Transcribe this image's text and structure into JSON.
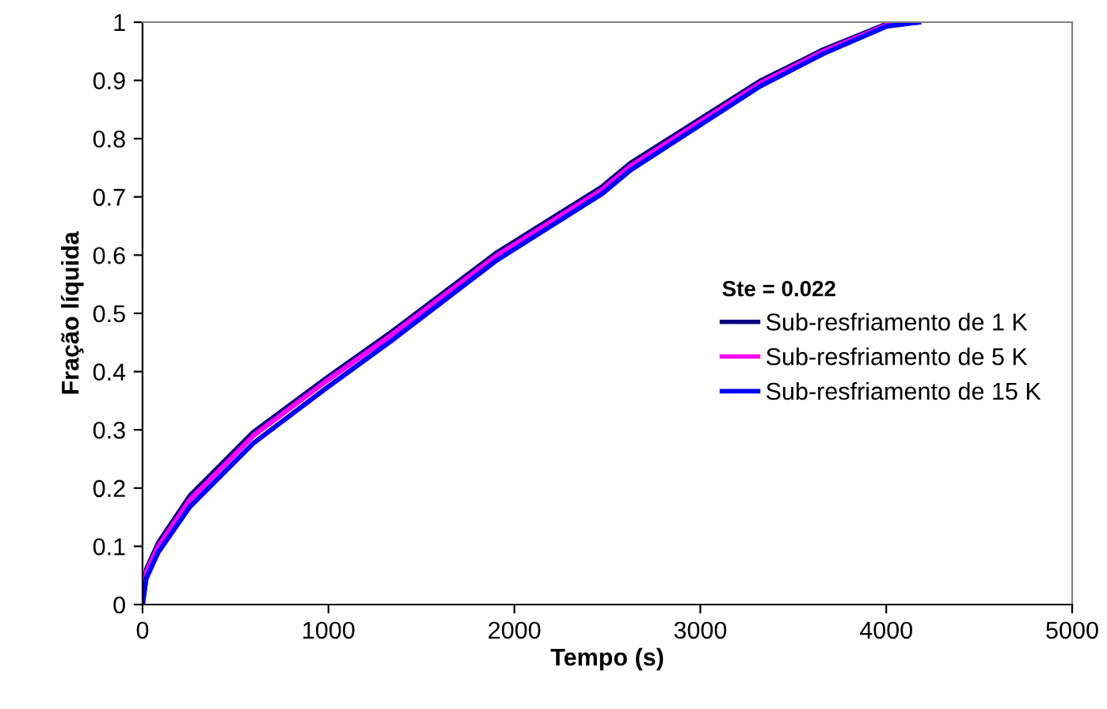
{
  "chart_data": {
    "type": "line",
    "xlabel": "Tempo (s)",
    "ylabel": "Fração líquida",
    "legend_title": "Ste = 0.022",
    "legend": "right",
    "grid": false,
    "marker": "none",
    "line_style": "solid",
    "xlim": [
      0,
      5000
    ],
    "xticks": [
      0,
      1000,
      2000,
      3000,
      4000,
      5000
    ],
    "ylim": [
      0,
      1
    ],
    "yticks": [
      0,
      0.1,
      0.2,
      0.3,
      0.4,
      0.5,
      0.6,
      0.7,
      0.8,
      0.9,
      1
    ],
    "series": [
      {
        "name": "Sub-resfriamento de 1 K",
        "color": "#000080",
        "x": [
          0,
          20,
          85,
          255,
          596,
          994,
          1335,
          1900,
          2470,
          2625,
          3322,
          3663,
          4003,
          4174
        ],
        "values": [
          0,
          0.06,
          0.106,
          0.187,
          0.296,
          0.39,
          0.467,
          0.603,
          0.717,
          0.758,
          0.899,
          0.953,
          0.997,
          1
        ]
      },
      {
        "name": "Sub-resfriamento de 5 K",
        "color": "#ff00ff",
        "x": [
          0,
          20,
          85,
          255,
          596,
          994,
          1335,
          1900,
          2470,
          2625,
          3322,
          3663,
          4003,
          4174
        ],
        "values": [
          0,
          0.055,
          0.1,
          0.18,
          0.29,
          0.385,
          0.462,
          0.598,
          0.712,
          0.753,
          0.895,
          0.95,
          0.995,
          1
        ]
      },
      {
        "name": "Sub-resfriamento de 15 K",
        "color": "#0000ff",
        "x": [
          0,
          20,
          85,
          255,
          596,
          994,
          1335,
          1900,
          2470,
          2625,
          3322,
          3663,
          4003,
          4174
        ],
        "values": [
          0,
          0.045,
          0.09,
          0.168,
          0.277,
          0.373,
          0.452,
          0.59,
          0.705,
          0.746,
          0.89,
          0.946,
          0.993,
          1
        ]
      }
    ]
  }
}
